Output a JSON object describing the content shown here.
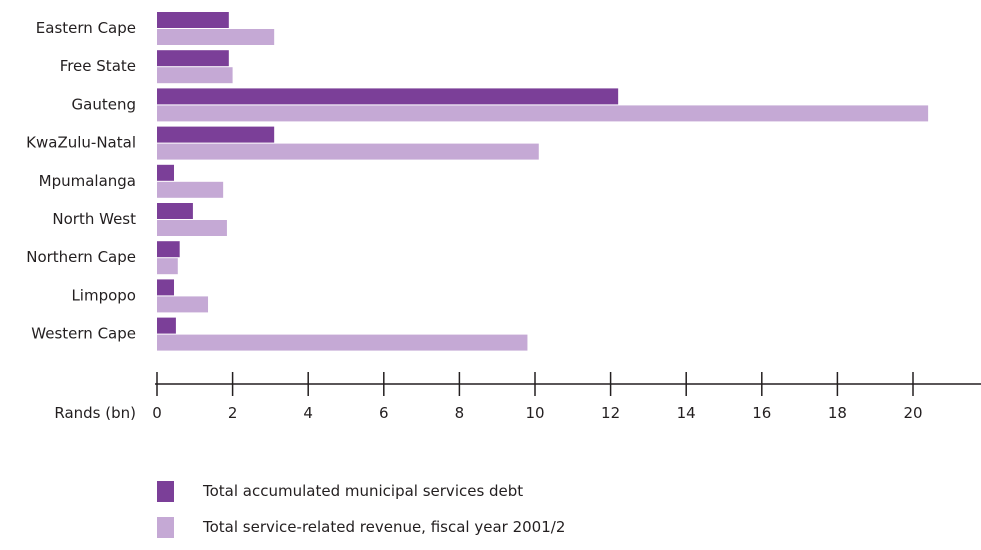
{
  "chart_data": {
    "type": "bar",
    "orientation": "horizontal",
    "categories": [
      "Eastern Cape",
      "Free State",
      "Gauteng",
      "KwaZulu-Natal",
      "Mpumalanga",
      "North West",
      "Northern Cape",
      "Limpopo",
      "Western Cape"
    ],
    "series": [
      {
        "name": "Total accumulated municipal services debt",
        "color": "#7b3f98",
        "values": [
          1.9,
          1.9,
          12.2,
          3.1,
          0.45,
          0.95,
          0.6,
          0.45,
          0.5
        ]
      },
      {
        "name": "Total service-related revenue, fiscal year 2001/2",
        "color": "#c5a9d5",
        "values": [
          3.1,
          2.0,
          20.4,
          10.1,
          1.75,
          1.85,
          0.55,
          1.35,
          9.8
        ]
      }
    ],
    "xlabel": "Rands (bn)",
    "xlim": [
      0,
      22
    ],
    "xticks": [
      0,
      2,
      4,
      6,
      8,
      10,
      12,
      14,
      16,
      18,
      20
    ],
    "grid": false,
    "legend_position": "bottom-left"
  }
}
